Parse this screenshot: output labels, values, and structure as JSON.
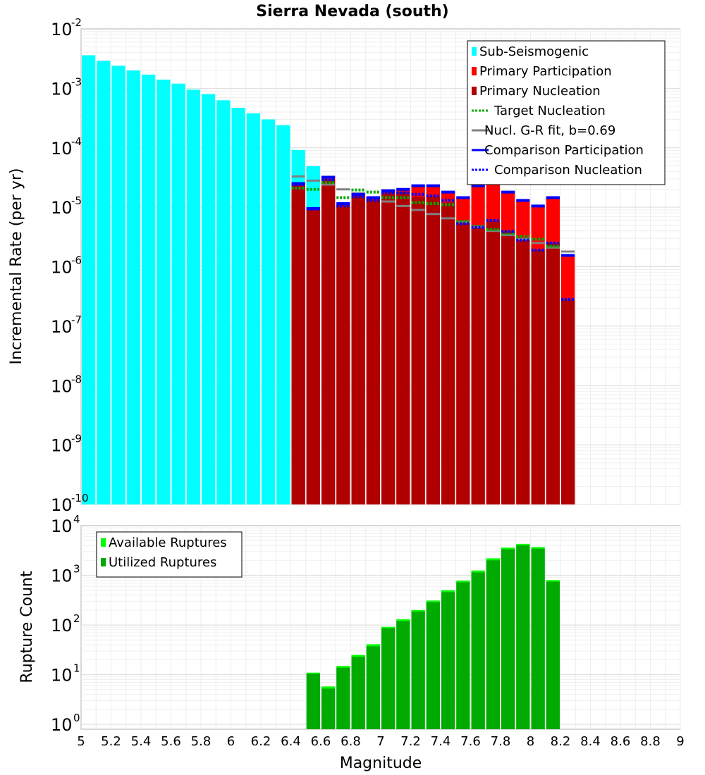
{
  "chart_data": [
    {
      "type": "bar",
      "title": "Sierra Nevada (south)",
      "xlabel": "",
      "ylabel": "Incremental Rate (per yr)",
      "yscale": "log",
      "xlim": [
        5,
        9
      ],
      "ylim": [
        1e-10,
        0.01
      ],
      "y_ticks": [
        {
          "base": "10",
          "exp": "-2",
          "value": 0.01
        },
        {
          "base": "10",
          "exp": "-3",
          "value": 0.001
        },
        {
          "base": "10",
          "exp": "-4",
          "value": 0.0001
        },
        {
          "base": "10",
          "exp": "-5",
          "value": 1e-05
        },
        {
          "base": "10",
          "exp": "-6",
          "value": 1e-06
        },
        {
          "base": "10",
          "exp": "-7",
          "value": 1e-07
        },
        {
          "base": "10",
          "exp": "-8",
          "value": 1e-08
        },
        {
          "base": "10",
          "exp": "-9",
          "value": 1e-09
        },
        {
          "base": "10",
          "exp": "-10",
          "value": 1e-10
        }
      ],
      "legend_position": "top-right",
      "legend": [
        {
          "label": "Sub-Seismogenic",
          "color": "#00ffff",
          "style": "box"
        },
        {
          "label": "Primary Participation",
          "color": "#ff0000",
          "style": "box"
        },
        {
          "label": "Primary Nucleation",
          "color": "#b00000",
          "style": "box"
        },
        {
          "label": "Target Nucleation",
          "color": "#00aa00",
          "style": "dotted"
        },
        {
          "label": "Nucl. G-R fit, b=0.69",
          "color": "#808080",
          "style": "solid"
        },
        {
          "label": "Comparison Participation",
          "color": "#0000ff",
          "style": "solid"
        },
        {
          "label": "Comparison Nucleation",
          "color": "#0000ff",
          "style": "dotted"
        }
      ],
      "sub_seismogenic": {
        "color": "#00ffff",
        "x": [
          5.05,
          5.15,
          5.25,
          5.35,
          5.45,
          5.55,
          5.65,
          5.75,
          5.85,
          5.95,
          6.05,
          6.15,
          6.25,
          6.35,
          6.45,
          6.55
        ],
        "values": [
          0.0036,
          0.0029,
          0.0024,
          0.002,
          0.0017,
          0.0014,
          0.0012,
          0.00095,
          0.0008,
          0.00063,
          0.00047,
          0.00038,
          0.0003,
          0.00024,
          9.2e-05,
          4.9e-05
        ]
      },
      "primary": {
        "x": [
          6.45,
          6.55,
          6.65,
          6.75,
          6.85,
          6.95,
          7.05,
          7.15,
          7.25,
          7.35,
          7.45,
          7.55,
          7.65,
          7.75,
          7.85,
          7.95,
          8.05,
          8.15,
          8.25
        ],
        "participation": [
          2.5e-05,
          9.5e-06,
          3.2e-05,
          1.15e-05,
          1.65e-05,
          1.45e-05,
          1.9e-05,
          2e-05,
          2.3e-05,
          2.3e-05,
          1.8e-05,
          1.45e-05,
          2.3e-05,
          3e-05,
          1.8e-05,
          1.3e-05,
          1.05e-05,
          1.45e-05,
          1.55e-06
        ],
        "nucleation": [
          2.5e-05,
          9.5e-06,
          3e-05,
          1.1e-05,
          1.55e-05,
          1.35e-05,
          1.8e-05,
          1.8e-05,
          1.5e-05,
          1.5e-05,
          1.2e-05,
          5.5e-06,
          4.8e-06,
          5.8e-06,
          4e-06,
          3e-06,
          1.9e-06,
          2.5e-06,
          2.8e-07
        ],
        "participation_color": "#ff0000",
        "nucleation_color": "#b00000"
      },
      "target_nucleation": {
        "color": "#00aa00",
        "x": [
          6.45,
          6.55,
          6.65,
          6.75,
          6.85,
          6.95,
          7.05,
          7.15,
          7.25,
          7.35,
          7.45,
          7.55,
          7.65,
          7.75,
          7.85,
          7.95,
          8.05,
          8.15
        ],
        "values": [
          2.1e-05,
          2e-05,
          2.6e-05,
          1.45e-05,
          1.95e-05,
          1.8e-05,
          1.45e-05,
          1.45e-05,
          1.2e-05,
          1.15e-05,
          1.1e-05,
          5.8e-06,
          4.8e-06,
          4.2e-06,
          3.6e-06,
          3.2e-06,
          2.9e-06,
          2.2e-06
        ]
      },
      "gr_fit": {
        "color": "#808080",
        "x": [
          6.45,
          6.55,
          6.65,
          6.75,
          6.85,
          6.95,
          7.05,
          7.15,
          7.25,
          7.35,
          7.45,
          7.55,
          7.65,
          7.75,
          7.85,
          7.95,
          8.05,
          8.15,
          8.25
        ],
        "values": [
          3.3e-05,
          2.8e-05,
          2.4e-05,
          2e-05,
          1.7e-05,
          1.45e-05,
          1.25e-05,
          1.05e-05,
          9e-06,
          7.7e-06,
          6.5e-06,
          5.6e-06,
          4.7e-06,
          4e-06,
          3.4e-06,
          2.9e-06,
          2.5e-06,
          2.1e-06,
          1.8e-06
        ]
      },
      "comparison_participation": {
        "color": "#0000ff",
        "x": [
          6.45,
          6.55,
          6.65,
          6.75,
          6.85,
          6.95,
          7.05,
          7.15,
          7.25,
          7.35,
          7.45,
          7.55,
          7.65,
          7.75,
          7.85,
          7.95,
          8.05,
          8.15,
          8.25
        ],
        "values": [
          2.5e-05,
          9.5e-06,
          3.2e-05,
          1.15e-05,
          1.65e-05,
          1.45e-05,
          1.9e-05,
          2e-05,
          2.3e-05,
          2.3e-05,
          1.8e-05,
          1.45e-05,
          2.3e-05,
          3e-05,
          1.8e-05,
          1.3e-05,
          1.05e-05,
          1.45e-05,
          1.55e-06
        ]
      },
      "comparison_nucleation": {
        "color": "#0000ff",
        "x": [
          6.45,
          6.55,
          6.65,
          6.75,
          6.85,
          6.95,
          7.05,
          7.15,
          7.25,
          7.35,
          7.45,
          7.55,
          7.65,
          7.75,
          7.85,
          7.95,
          8.05,
          8.15,
          8.25
        ],
        "values": [
          2.4e-05,
          9.3e-06,
          2.9e-05,
          1.05e-05,
          1.5e-05,
          1.3e-05,
          1.75e-05,
          1.75e-05,
          1.65e-05,
          1.55e-05,
          1.3e-05,
          5.3e-06,
          4.6e-06,
          6e-06,
          3.9e-06,
          2.8e-06,
          1.9e-06,
          2.5e-06,
          2.8e-07
        ]
      }
    },
    {
      "type": "bar",
      "title": "",
      "xlabel": "Magnitude",
      "ylabel": "Rupture Count",
      "yscale": "log",
      "xlim": [
        5,
        9
      ],
      "ylim": [
        0.8,
        10000
      ],
      "x_ticks": [
        "5",
        "5.2",
        "5.4",
        "5.6",
        "5.8",
        "6",
        "6.2",
        "6.4",
        "6.6",
        "6.8",
        "7",
        "7.2",
        "7.4",
        "7.6",
        "7.8",
        "8",
        "8.2",
        "8.4",
        "8.6",
        "8.8",
        "9"
      ],
      "y_ticks": [
        {
          "base": "10",
          "exp": "4",
          "value": 10000
        },
        {
          "base": "10",
          "exp": "3",
          "value": 1000
        },
        {
          "base": "10",
          "exp": "2",
          "value": 100
        },
        {
          "base": "10",
          "exp": "1",
          "value": 10
        },
        {
          "base": "10",
          "exp": "0",
          "value": 1
        }
      ],
      "legend_position": "top-left",
      "legend": [
        {
          "label": "Available Ruptures",
          "color": "#00ff00",
          "style": "box"
        },
        {
          "label": "Utilized Ruptures",
          "color": "#00aa00",
          "style": "box"
        }
      ],
      "x": [
        6.55,
        6.65,
        6.75,
        6.85,
        6.95,
        7.05,
        7.15,
        7.25,
        7.35,
        7.45,
        7.55,
        7.65,
        7.75,
        7.85,
        7.95,
        8.05,
        8.15
      ],
      "available": [
        11,
        5.8,
        15,
        25,
        41,
        92,
        130,
        200,
        310,
        500,
        780,
        1250,
        2200,
        3600,
        4300,
        3700,
        800
      ],
      "utilized": [
        11,
        5.5,
        14.5,
        24,
        39,
        90,
        125,
        195,
        300,
        480,
        760,
        1200,
        2100,
        3500,
        4200,
        3600,
        780
      ]
    }
  ]
}
